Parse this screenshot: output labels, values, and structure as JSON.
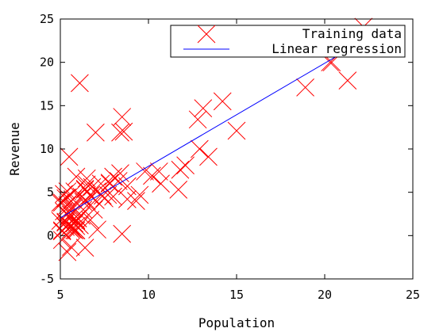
{
  "chart_data": {
    "type": "scatter",
    "title": "",
    "xlabel": "Population",
    "ylabel": "Revenue",
    "xlim": [
      5,
      25
    ],
    "ylim": [
      -5,
      25
    ],
    "xticks": [
      "5",
      "10",
      "15",
      "20",
      "25"
    ],
    "yticks": [
      "-5",
      "0",
      "5",
      "10",
      "15",
      "20",
      "25"
    ],
    "grid": false,
    "legend_placement": "top-right",
    "series": [
      {
        "name": "Training data",
        "marker": "x",
        "color": "#ff0000",
        "points": [
          [
            6.1,
            17.6
          ],
          [
            5.5,
            9.1
          ],
          [
            8.5,
            13.7
          ],
          [
            7.0,
            11.9
          ],
          [
            5.9,
            6.8
          ],
          [
            8.4,
            11.9
          ],
          [
            7.5,
            4.3
          ],
          [
            8.6,
            12.0
          ],
          [
            6.5,
            6.6
          ],
          [
            5.1,
            3.8
          ],
          [
            5.7,
            3.3
          ],
          [
            14.2,
            15.5
          ],
          [
            5.7,
            3.1
          ],
          [
            8.4,
            7.2
          ],
          [
            5.6,
            0.7
          ],
          [
            5.4,
            3.5
          ],
          [
            6.4,
            5.4
          ],
          [
            5.1,
            0.6
          ],
          [
            5.0,
            3.8
          ],
          [
            6.5,
            4.0
          ],
          [
            5.9,
            1.7
          ],
          [
            5.7,
            0.7
          ],
          [
            9.3,
            4.0
          ],
          [
            5.8,
            5.1
          ],
          [
            8.8,
            5.7
          ],
          [
            5.4,
            -1.9
          ],
          [
            21.3,
            17.9
          ],
          [
            13.1,
            14.7
          ],
          [
            5.0,
            1.7
          ],
          [
            6.2,
            2.3
          ],
          [
            6.7,
            1.8
          ],
          [
            9.8,
            7.4
          ],
          [
            11.7,
            5.3
          ],
          [
            8.5,
            0.2
          ],
          [
            5.6,
            1.1
          ],
          [
            6.7,
            4.6
          ],
          [
            13.4,
            9.1
          ],
          [
            5.3,
            1.6
          ],
          [
            9.5,
            4.7
          ],
          [
            7.1,
            0.7
          ],
          [
            5.6,
            -1.3
          ],
          [
            5.1,
            0.5
          ],
          [
            8.8,
            4.2
          ],
          [
            5.9,
            0.6
          ],
          [
            5.7,
            4.2
          ],
          [
            12.8,
            13.4
          ],
          [
            10.6,
            7.4
          ],
          [
            10.2,
            6.9
          ],
          [
            15.0,
            12.1
          ],
          [
            5.3,
            1.0
          ],
          [
            7.0,
            4.1
          ],
          [
            10.7,
            6.0
          ],
          [
            5.9,
            0.6
          ],
          [
            7.3,
            6.0
          ],
          [
            8.0,
            4.5
          ],
          [
            7.4,
            4.6
          ],
          [
            6.4,
            5.3
          ],
          [
            5.6,
            3.1
          ],
          [
            20.3,
            20.0
          ],
          [
            22.2,
            24.1
          ],
          [
            18.9,
            17.1
          ],
          [
            6.5,
            5.9
          ],
          [
            7.8,
            6.0
          ],
          [
            11.8,
            7.6
          ],
          [
            6.4,
            -1.4
          ],
          [
            5.6,
            2.4
          ],
          [
            6.2,
            4.5
          ],
          [
            7.1,
            5.1
          ],
          [
            5.3,
            4.3
          ],
          [
            6.0,
            2.0
          ],
          [
            12.1,
            8.1
          ],
          [
            5.1,
            -0.5
          ],
          [
            7.8,
            6.1
          ],
          [
            5.4,
            4.4
          ],
          [
            6.8,
            5.6
          ],
          [
            5.4,
            5.1
          ],
          [
            5.2,
            2.8
          ],
          [
            7.7,
            4.7
          ],
          [
            5.9,
            1.1
          ],
          [
            5.2,
            4.8
          ],
          [
            6.9,
            3.0
          ],
          [
            5.8,
            0.6
          ],
          [
            5.5,
            2.3
          ],
          [
            6.1,
            1.2
          ],
          [
            5.5,
            0.9
          ],
          [
            5.4,
            1.1
          ],
          [
            6.3,
            3.9
          ],
          [
            8.3,
            6.3
          ],
          [
            8.0,
            6.8
          ],
          [
            5.3,
            1.5
          ],
          [
            5.9,
            1.8
          ],
          [
            6.0,
            2.0
          ],
          [
            5.8,
            1.4
          ],
          [
            6.3,
            3.0
          ],
          [
            5.5,
            2.2
          ],
          [
            12.9,
            10.0
          ],
          [
            19.0,
            23.0
          ],
          [
            20.4,
            20.0
          ]
        ]
      },
      {
        "name": "Linear regression",
        "type": "line",
        "color": "#0000ff",
        "x_range": [
          5.0,
          22.2
        ],
        "intercept": -3.9,
        "slope": 1.19
      }
    ]
  }
}
